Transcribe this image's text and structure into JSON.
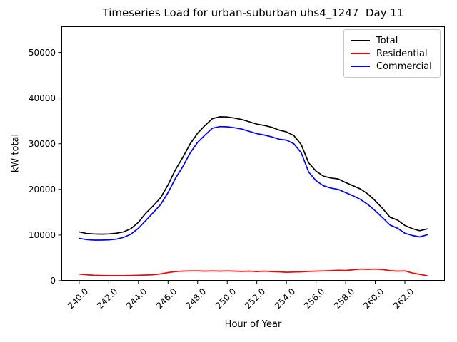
{
  "chart_data": {
    "type": "line",
    "title": "Timeseries Load for urban-suburban uhs4_1247  Day 11",
    "xlabel": "Hour of Year",
    "ylabel": "kW total",
    "xlim": [
      238.8,
      264.7
    ],
    "ylim": [
      0,
      55700
    ],
    "grid": false,
    "legend_position": "upper right",
    "xticks": [
      240,
      242,
      244,
      246,
      248,
      250,
      252,
      254,
      256,
      258,
      260,
      262
    ],
    "xtick_labels": [
      "240.0",
      "242.0",
      "244.0",
      "246.0",
      "248.0",
      "250.0",
      "252.0",
      "254.0",
      "256.0",
      "258.0",
      "260.0",
      "262.0"
    ],
    "yticks": [
      0,
      10000,
      20000,
      30000,
      40000,
      50000
    ],
    "ytick_labels": [
      "0",
      "10000",
      "20000",
      "30000",
      "40000",
      "50000"
    ],
    "x": [
      240.0,
      240.5,
      241.0,
      241.5,
      242.0,
      242.5,
      243.0,
      243.5,
      244.0,
      244.5,
      245.0,
      245.5,
      246.0,
      246.5,
      247.0,
      247.5,
      248.0,
      248.5,
      249.0,
      249.5,
      250.0,
      250.5,
      251.0,
      251.5,
      252.0,
      252.5,
      253.0,
      253.5,
      254.0,
      254.5,
      255.0,
      255.5,
      256.0,
      256.5,
      257.0,
      257.5,
      258.0,
      258.5,
      259.0,
      259.5,
      260.0,
      260.5,
      261.0,
      261.5,
      262.0,
      262.5,
      263.0,
      263.5
    ],
    "series": [
      {
        "name": "Total",
        "color": "#000000",
        "values": [
          10700,
          10350,
          10250,
          10200,
          10250,
          10400,
          10700,
          11400,
          12800,
          14800,
          16400,
          18200,
          21000,
          24300,
          27000,
          30000,
          32300,
          34000,
          35500,
          35900,
          35850,
          35600,
          35300,
          34800,
          34300,
          34000,
          33600,
          33000,
          32600,
          31800,
          29800,
          25800,
          24000,
          22900,
          22500,
          22300,
          21500,
          20800,
          20100,
          19000,
          17500,
          15800,
          13900,
          13300,
          12100,
          11400,
          10950,
          11350
        ]
      },
      {
        "name": "Residential",
        "color": "#ff0000",
        "values": [
          1450,
          1300,
          1200,
          1150,
          1100,
          1100,
          1100,
          1150,
          1200,
          1250,
          1300,
          1500,
          1800,
          2000,
          2100,
          2150,
          2150,
          2100,
          2150,
          2100,
          2150,
          2100,
          2050,
          2100,
          2000,
          2100,
          2000,
          1950,
          1850,
          1900,
          1950,
          2050,
          2100,
          2150,
          2200,
          2300,
          2250,
          2400,
          2550,
          2500,
          2550,
          2450,
          2200,
          2100,
          2150,
          1700,
          1400,
          1100
        ]
      },
      {
        "name": "Commercial",
        "color": "#0000ff",
        "values": [
          9300,
          9000,
          8900,
          8900,
          8950,
          9100,
          9500,
          10200,
          11500,
          13200,
          14900,
          16700,
          19300,
          22400,
          25000,
          28000,
          30300,
          31900,
          33400,
          33750,
          33700,
          33500,
          33200,
          32700,
          32200,
          31900,
          31500,
          31000,
          30800,
          30000,
          28000,
          23800,
          21900,
          20800,
          20300,
          20000,
          19300,
          18600,
          17800,
          16700,
          15300,
          13800,
          12200,
          11500,
          10400,
          9900,
          9600,
          10050
        ]
      }
    ]
  }
}
